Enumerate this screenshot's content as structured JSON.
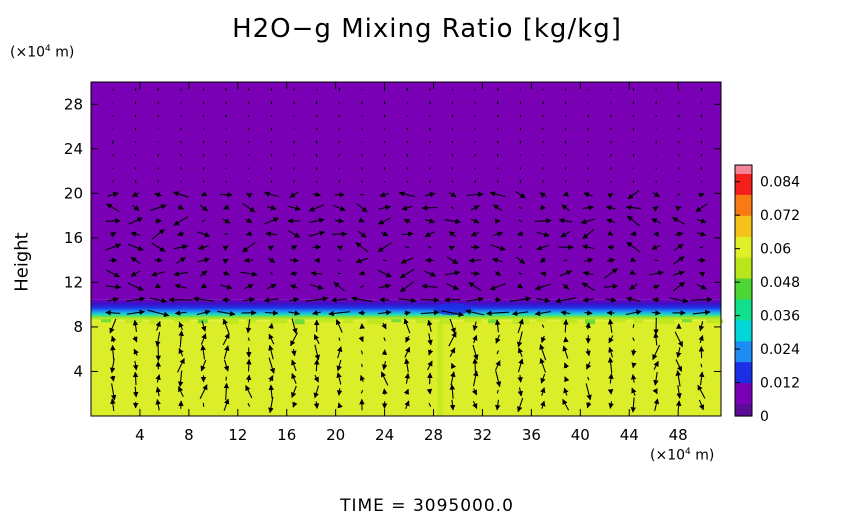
{
  "chart_data": {
    "type": "heatmap",
    "title": "H2O−g Mixing Ratio [kg/kg]",
    "ylabel": "Height",
    "y_unit": {
      "prefix": "(×10",
      "exp": "4",
      "suffix": " m)"
    },
    "x_unit": {
      "prefix": "(×10",
      "exp": "4",
      "suffix": " m)"
    },
    "footer": "TIME  =  3095000.0",
    "xlim": [
      0,
      51.5
    ],
    "ylim": [
      0,
      30
    ],
    "x_ticks": [
      "4",
      "8",
      "12",
      "16",
      "20",
      "24",
      "28",
      "32",
      "36",
      "40",
      "44",
      "48"
    ],
    "y_ticks": [
      "4",
      "8",
      "12",
      "16",
      "20",
      "24",
      "28"
    ],
    "colorbar": {
      "range": [
        0,
        0.09
      ],
      "ticks": [
        "0",
        "0.012",
        "0.024",
        "0.036",
        "0.048",
        "0.06",
        "0.072",
        "0.084"
      ],
      "colors": [
        "#5b0c97",
        "#7a00b5",
        "#1d2fe6",
        "#1f8cf4",
        "#00d5d8",
        "#10e08c",
        "#4cd535",
        "#b8e61a",
        "#e0ef28",
        "#f7c11c",
        "#f97a12",
        "#f41e1a",
        "#f6839a"
      ]
    },
    "fields": {
      "upper_value": 0.0,
      "lower_value": 0.06,
      "interface_height": 9.5,
      "transition_band": [
        8.6,
        10.5
      ]
    },
    "vectors": {
      "description_grid": "wind vectors overlaid on field",
      "color": "#000000"
    }
  }
}
